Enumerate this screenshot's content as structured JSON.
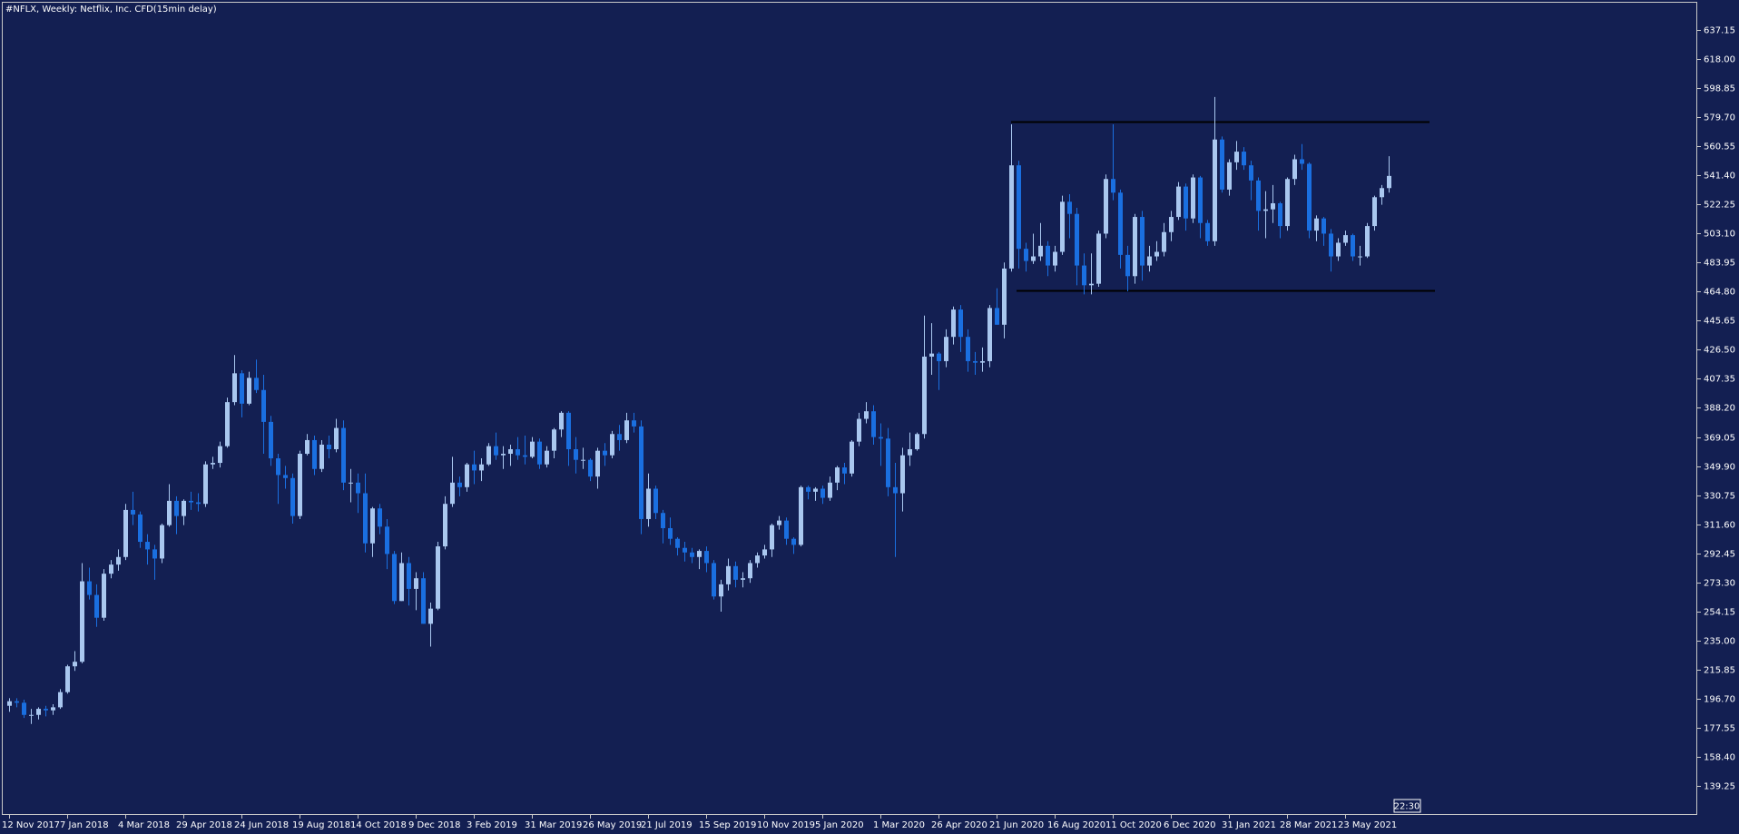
{
  "chart_data": {
    "type": "candlestick",
    "title": "#NFLX, Weekly:  Netflix, Inc. CFD(15min delay)",
    "time_label": "22:30",
    "up_color": "#a9c7ef",
    "down_color": "#1a6fe0",
    "ylim": [
      120.1,
      655.1
    ],
    "yticks": [
      139.25,
      {
        "value": 158.4,
        "label": "158.40"
      },
      177.55,
      {
        "value": 196.7,
        "label": "196.70"
      },
      215.85,
      {
        "value": 235,
        "label": "235.00"
      },
      254.15,
      {
        "value": 273.3,
        "label": "273.30"
      },
      292.45,
      {
        "value": 311.6,
        "label": "311.60"
      },
      330.75,
      {
        "value": 349.9,
        "label": "349.90"
      },
      369.05,
      {
        "value": 388.2,
        "label": "388.20"
      },
      407.35,
      {
        "value": 426.5,
        "label": "426.50"
      },
      445.65,
      {
        "value": 464.8,
        "label": "464.80"
      },
      483.95,
      {
        "value": 503.1,
        "label": "503.10"
      },
      522.25,
      {
        "value": 541.4,
        "label": "541.40"
      },
      560.55,
      {
        "value": 579.7,
        "label": "579.70"
      },
      598.85,
      {
        "value": 618,
        "label": "618.00"
      },
      637.15
    ],
    "categories": [
      "12 Nov 2017",
      null,
      null,
      null,
      null,
      null,
      null,
      null,
      "7 Jan 2018",
      null,
      null,
      null,
      null,
      null,
      null,
      null,
      "4 Mar 2018",
      null,
      null,
      null,
      null,
      null,
      null,
      null,
      "29 Apr 2018",
      null,
      null,
      null,
      null,
      null,
      null,
      null,
      "24 Jun 2018",
      null,
      null,
      null,
      null,
      null,
      null,
      null,
      "19 Aug 2018",
      null,
      null,
      null,
      null,
      null,
      null,
      null,
      "14 Oct 2018",
      null,
      null,
      null,
      null,
      null,
      null,
      null,
      "9 Dec 2018",
      null,
      null,
      null,
      null,
      null,
      null,
      null,
      "3 Feb 2019",
      null,
      null,
      null,
      null,
      null,
      null,
      null,
      "31 Mar 2019",
      null,
      null,
      null,
      null,
      null,
      null,
      null,
      "26 May 2019",
      null,
      null,
      null,
      null,
      null,
      null,
      null,
      "21 Jul 2019",
      null,
      null,
      null,
      null,
      null,
      null,
      null,
      "15 Sep 2019",
      null,
      null,
      null,
      null,
      null,
      null,
      null,
      "10 Nov 2019",
      null,
      null,
      null,
      null,
      null,
      null,
      null,
      "5 Jan 2020",
      null,
      null,
      null,
      null,
      null,
      null,
      null,
      "1 Mar 2020",
      null,
      null,
      null,
      null,
      null,
      null,
      null,
      "26 Apr 2020",
      null,
      null,
      null,
      null,
      null,
      null,
      null,
      "21 Jun 2020",
      null,
      null,
      null,
      null,
      null,
      null,
      null,
      "16 Aug 2020",
      null,
      null,
      null,
      null,
      null,
      null,
      null,
      "11 Oct 2020",
      null,
      null,
      null,
      null,
      null,
      null,
      null,
      "6 Dec 2020",
      null,
      null,
      null,
      null,
      null,
      null,
      null,
      "31 Jan 2021",
      null,
      null,
      null,
      null,
      null,
      null,
      null,
      "28 Mar 2021",
      null,
      null,
      null,
      null,
      null,
      null,
      null,
      "23 May 2021",
      null,
      null,
      null,
      null,
      null,
      null
    ],
    "ohlc": [
      [
        192,
        197,
        188,
        195
      ],
      [
        195,
        197,
        191,
        194
      ],
      [
        194,
        196,
        184,
        186
      ],
      [
        186,
        190,
        180,
        186
      ],
      [
        186,
        191,
        183,
        190
      ],
      [
        190,
        192,
        185,
        189
      ],
      [
        189,
        193,
        186,
        191
      ],
      [
        191,
        203,
        190,
        201
      ],
      [
        201,
        219,
        200,
        218
      ],
      [
        218,
        228,
        215,
        221
      ],
      [
        221,
        286,
        220,
        274
      ],
      [
        274,
        283,
        262,
        265
      ],
      [
        265,
        272,
        244,
        250
      ],
      [
        250,
        282,
        248,
        279
      ],
      [
        279,
        288,
        276,
        285
      ],
      [
        285,
        295,
        281,
        290
      ],
      [
        290,
        325,
        288,
        321
      ],
      [
        321,
        333,
        311,
        318
      ],
      [
        318,
        320,
        296,
        300
      ],
      [
        300,
        305,
        285,
        295
      ],
      [
        295,
        298,
        275,
        289
      ],
      [
        289,
        312,
        286,
        311
      ],
      [
        311,
        338,
        310,
        327
      ],
      [
        327,
        330,
        305,
        317
      ],
      [
        317,
        328,
        311,
        327
      ],
      [
        327,
        333,
        321,
        326
      ],
      [
        326,
        332,
        320,
        325
      ],
      [
        325,
        353,
        323,
        351
      ],
      [
        351,
        356,
        348,
        352
      ],
      [
        352,
        366,
        349,
        363
      ],
      [
        363,
        395,
        362,
        392
      ],
      [
        392,
        423,
        390,
        411
      ],
      [
        411,
        413,
        382,
        391
      ],
      [
        391,
        412,
        390,
        408
      ],
      [
        408,
        420,
        398,
        400
      ],
      [
        400,
        410,
        358,
        379
      ],
      [
        379,
        383,
        350,
        355
      ],
      [
        355,
        358,
        325,
        344
      ],
      [
        344,
        350,
        335,
        342
      ],
      [
        342,
        345,
        312,
        317
      ],
      [
        317,
        360,
        315,
        358
      ],
      [
        358,
        371,
        357,
        367
      ],
      [
        367,
        370,
        344,
        348
      ],
      [
        348,
        367,
        346,
        364
      ],
      [
        364,
        370,
        355,
        361
      ],
      [
        361,
        381,
        359,
        375
      ],
      [
        375,
        380,
        334,
        339
      ],
      [
        339,
        348,
        326,
        339
      ],
      [
        339,
        345,
        319,
        332
      ],
      [
        332,
        345,
        293,
        299
      ],
      [
        299,
        323,
        290,
        322
      ],
      [
        322,
        325,
        305,
        310
      ],
      [
        310,
        315,
        282,
        292
      ],
      [
        292,
        294,
        259,
        261
      ],
      [
        261,
        293,
        261,
        286
      ],
      [
        286,
        290,
        258,
        269
      ],
      [
        269,
        280,
        255,
        276
      ],
      [
        276,
        280,
        246,
        246
      ],
      [
        246,
        260,
        231,
        256
      ],
      [
        256,
        300,
        255,
        297
      ],
      [
        297,
        330,
        295,
        325
      ],
      [
        325,
        356,
        323,
        339
      ],
      [
        339,
        343,
        330,
        336
      ],
      [
        336,
        352,
        333,
        351
      ],
      [
        351,
        360,
        338,
        347
      ],
      [
        347,
        355,
        340,
        351
      ],
      [
        351,
        365,
        350,
        363
      ],
      [
        363,
        372,
        354,
        357
      ],
      [
        357,
        363,
        348,
        358
      ],
      [
        358,
        364,
        350,
        361
      ],
      [
        361,
        369,
        354,
        357
      ],
      [
        357,
        370,
        351,
        356
      ],
      [
        356,
        369,
        355,
        366
      ],
      [
        366,
        368,
        348,
        351
      ],
      [
        351,
        363,
        349,
        360
      ],
      [
        360,
        375,
        355,
        374
      ],
      [
        374,
        386,
        369,
        385
      ],
      [
        385,
        386,
        350,
        361
      ],
      [
        361,
        369,
        345,
        354
      ],
      [
        354,
        362,
        348,
        354
      ],
      [
        354,
        355,
        340,
        343
      ],
      [
        343,
        362,
        335,
        360
      ],
      [
        360,
        365,
        350,
        357
      ],
      [
        357,
        373,
        355,
        371
      ],
      [
        371,
        377,
        360,
        367
      ],
      [
        367,
        385,
        365,
        380
      ],
      [
        380,
        385,
        372,
        376
      ],
      [
        376,
        380,
        305,
        315
      ],
      [
        315,
        345,
        310,
        335
      ],
      [
        335,
        337,
        315,
        319
      ],
      [
        319,
        321,
        299,
        309
      ],
      [
        309,
        316,
        298,
        302
      ],
      [
        302,
        303,
        291,
        296
      ],
      [
        296,
        300,
        287,
        293
      ],
      [
        293,
        296,
        286,
        290
      ],
      [
        290,
        295,
        282,
        294
      ],
      [
        294,
        297,
        280,
        286
      ],
      [
        286,
        288,
        262,
        264
      ],
      [
        264,
        275,
        254,
        272
      ],
      [
        272,
        289,
        268,
        284
      ],
      [
        284,
        287,
        270,
        275
      ],
      [
        275,
        280,
        270,
        276
      ],
      [
        276,
        288,
        273,
        286
      ],
      [
        286,
        293,
        283,
        291
      ],
      [
        291,
        298,
        289,
        295
      ],
      [
        295,
        312,
        290,
        311
      ],
      [
        311,
        317,
        308,
        314
      ],
      [
        314,
        316,
        298,
        302
      ],
      [
        302,
        303,
        292,
        298
      ],
      [
        298,
        337,
        297,
        336
      ],
      [
        336,
        337,
        328,
        333
      ],
      [
        333,
        336,
        327,
        335
      ],
      [
        335,
        337,
        325,
        329
      ],
      [
        329,
        343,
        327,
        339
      ],
      [
        339,
        350,
        334,
        349
      ],
      [
        349,
        352,
        338,
        345
      ],
      [
        345,
        367,
        343,
        366
      ],
      [
        366,
        385,
        363,
        381
      ],
      [
        381,
        392,
        378,
        386
      ],
      [
        386,
        390,
        364,
        369
      ],
      [
        369,
        378,
        350,
        368
      ],
      [
        368,
        375,
        330,
        336
      ],
      [
        336,
        352,
        290,
        332
      ],
      [
        332,
        362,
        320,
        357
      ],
      [
        357,
        372,
        350,
        361
      ],
      [
        361,
        372,
        360,
        371
      ],
      [
        371,
        449,
        368,
        422
      ],
      [
        422,
        444,
        410,
        424
      ],
      [
        424,
        425,
        400,
        419
      ],
      [
        419,
        440,
        415,
        435
      ],
      [
        435,
        455,
        430,
        453
      ],
      [
        453,
        456,
        425,
        435
      ],
      [
        435,
        440,
        412,
        419
      ],
      [
        419,
        425,
        410,
        418
      ],
      [
        418,
        428,
        412,
        419
      ],
      [
        419,
        456,
        415,
        454
      ],
      [
        454,
        467,
        443,
        443
      ],
      [
        443,
        484,
        434,
        480
      ],
      [
        480,
        575,
        478,
        548
      ],
      [
        548,
        551,
        480,
        493
      ],
      [
        493,
        497,
        478,
        485
      ],
      [
        485,
        503,
        483,
        488
      ],
      [
        488,
        510,
        485,
        495
      ],
      [
        495,
        498,
        475,
        482
      ],
      [
        482,
        495,
        478,
        491
      ],
      [
        491,
        528,
        489,
        524
      ],
      [
        524,
        529,
        500,
        516
      ],
      [
        516,
        520,
        469,
        482
      ],
      [
        482,
        490,
        463,
        469
      ],
      [
        469,
        490,
        463,
        470
      ],
      [
        470,
        505,
        468,
        503
      ],
      [
        503,
        542,
        500,
        539
      ],
      [
        539,
        575,
        525,
        530
      ],
      [
        530,
        532,
        480,
        489
      ],
      [
        489,
        495,
        465,
        475
      ],
      [
        475,
        516,
        470,
        514
      ],
      [
        514,
        518,
        472,
        482
      ],
      [
        482,
        495,
        478,
        488
      ],
      [
        488,
        498,
        485,
        491
      ],
      [
        491,
        510,
        488,
        504
      ],
      [
        504,
        518,
        498,
        514
      ],
      [
        514,
        537,
        512,
        534
      ],
      [
        534,
        536,
        505,
        513
      ],
      [
        513,
        542,
        510,
        540
      ],
      [
        540,
        541,
        500,
        510
      ],
      [
        510,
        512,
        495,
        498
      ],
      [
        498,
        593,
        495,
        565
      ],
      [
        565,
        567,
        530,
        532
      ],
      [
        532,
        552,
        528,
        550
      ],
      [
        550,
        564,
        545,
        557
      ],
      [
        557,
        560,
        545,
        548
      ],
      [
        548,
        551,
        525,
        538
      ],
      [
        538,
        540,
        505,
        518
      ],
      [
        518,
        531,
        500,
        519
      ],
      [
        519,
        535,
        510,
        523
      ],
      [
        523,
        524,
        500,
        508
      ],
      [
        508,
        540,
        505,
        539
      ],
      [
        539,
        555,
        535,
        552
      ],
      [
        552,
        562,
        545,
        549
      ],
      [
        549,
        550,
        500,
        505
      ],
      [
        505,
        515,
        498,
        513
      ],
      [
        513,
        514,
        495,
        503
      ],
      [
        503,
        506,
        478,
        488
      ],
      [
        488,
        500,
        485,
        497
      ],
      [
        497,
        505,
        495,
        502
      ],
      [
        502,
        503,
        485,
        488
      ],
      [
        488,
        495,
        482,
        488
      ],
      [
        488,
        510,
        487,
        508
      ],
      [
        508,
        528,
        505,
        527
      ],
      [
        527,
        535,
        522,
        533
      ],
      [
        533,
        554,
        530,
        541
      ]
    ]
  }
}
